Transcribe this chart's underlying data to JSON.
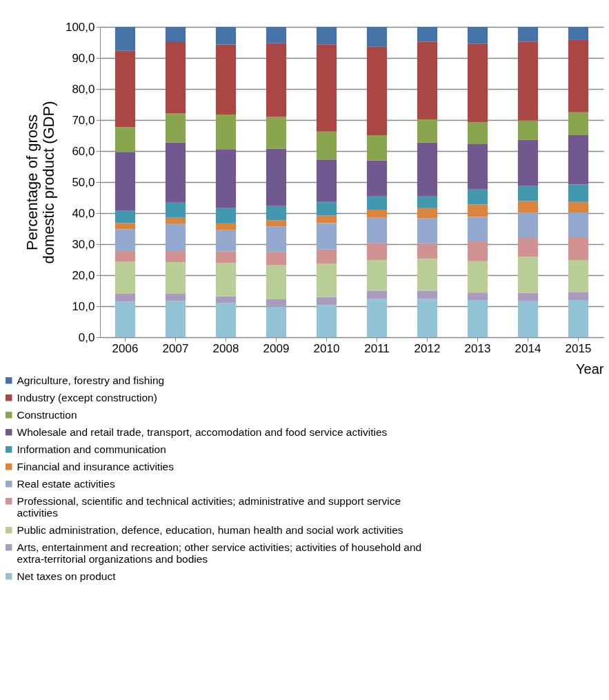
{
  "chart_data": {
    "type": "bar",
    "stacked": true,
    "xlabel": "Year",
    "ylabel": "Percentage of gross domestic product (GDP)",
    "categories": [
      "2006",
      "2007",
      "2008",
      "2009",
      "2010",
      "2011",
      "2012",
      "2013",
      "2014",
      "2015"
    ],
    "ylim": [
      0,
      100
    ],
    "yticks": [
      {
        "value": 0,
        "label": "0,0"
      },
      {
        "value": 10,
        "label": "10,0"
      },
      {
        "value": 20,
        "label": "20,0"
      },
      {
        "value": 30,
        "label": "30,0"
      },
      {
        "value": 40,
        "label": "40,0"
      },
      {
        "value": 50,
        "label": "50,0"
      },
      {
        "value": 60,
        "label": "60,0"
      },
      {
        "value": 70,
        "label": "70,0"
      },
      {
        "value": 80,
        "label": "80,0"
      },
      {
        "value": 90,
        "label": "90,0"
      },
      {
        "value": 100,
        "label": "100,0"
      }
    ],
    "grid": "y",
    "legend": "bottom left",
    "series": [
      {
        "name": "Net taxes on product",
        "color": "#92c3d4",
        "values": [
          11.5,
          11.7,
          11.0,
          9.9,
          10.4,
          12.3,
          12.3,
          12.0,
          11.6,
          12.0
        ]
      },
      {
        "name": "Arts, entertainment and recreation; other service activities; activities of household and extra-territorial organizations and bodies",
        "color": "#a99bbd",
        "values": [
          2.5,
          2.3,
          2.2,
          2.3,
          2.6,
          2.7,
          2.7,
          2.4,
          2.7,
          2.6
        ]
      },
      {
        "name": "Public administration, defence, education, human health and social work activities",
        "color": "#b9cd96",
        "values": [
          10.3,
          10.2,
          10.7,
          11.1,
          10.7,
          9.9,
          10.3,
          10.1,
          11.6,
          10.3
        ]
      },
      {
        "name": "Professional, scientific and technical activities; administrative and support service activities",
        "color": "#d19392",
        "values": [
          3.5,
          3.6,
          3.8,
          4.2,
          4.6,
          5.5,
          5.0,
          6.4,
          6.1,
          7.3
        ]
      },
      {
        "name": "Real estate activities",
        "color": "#93a9cf",
        "values": [
          7.0,
          8.7,
          6.8,
          8.2,
          8.5,
          8.1,
          8.0,
          7.9,
          8.1,
          8.0
        ]
      },
      {
        "name": "Financial and insurance activities",
        "color": "#db843d",
        "values": [
          2.0,
          2.0,
          2.2,
          2.0,
          2.4,
          2.6,
          3.3,
          4.0,
          3.8,
          3.4
        ]
      },
      {
        "name": "Information and communication",
        "color": "#4198af",
        "values": [
          3.9,
          4.9,
          4.9,
          4.6,
          4.4,
          4.3,
          3.8,
          4.8,
          4.8,
          5.6
        ]
      },
      {
        "name": "Wholesale and retail trade, transport, accomodation and food service activities",
        "color": "#71588f",
        "values": [
          19.0,
          19.4,
          19.0,
          18.4,
          13.7,
          11.6,
          17.3,
          14.6,
          14.9,
          15.9
        ]
      },
      {
        "name": "Construction",
        "color": "#89a54e",
        "values": [
          8.0,
          9.3,
          11.2,
          10.3,
          9.0,
          8.1,
          7.5,
          7.1,
          6.3,
          7.4
        ]
      },
      {
        "name": "Industry (except construction)",
        "color": "#aa4643",
        "values": [
          24.6,
          23.0,
          22.5,
          23.7,
          28.1,
          28.5,
          25.1,
          25.3,
          25.4,
          23.3
        ]
      },
      {
        "name": "Agriculture, forestry and fishing",
        "color": "#4572a7",
        "values": [
          7.7,
          4.9,
          5.7,
          5.3,
          5.6,
          6.4,
          4.7,
          5.4,
          4.7,
          4.2
        ]
      }
    ]
  }
}
